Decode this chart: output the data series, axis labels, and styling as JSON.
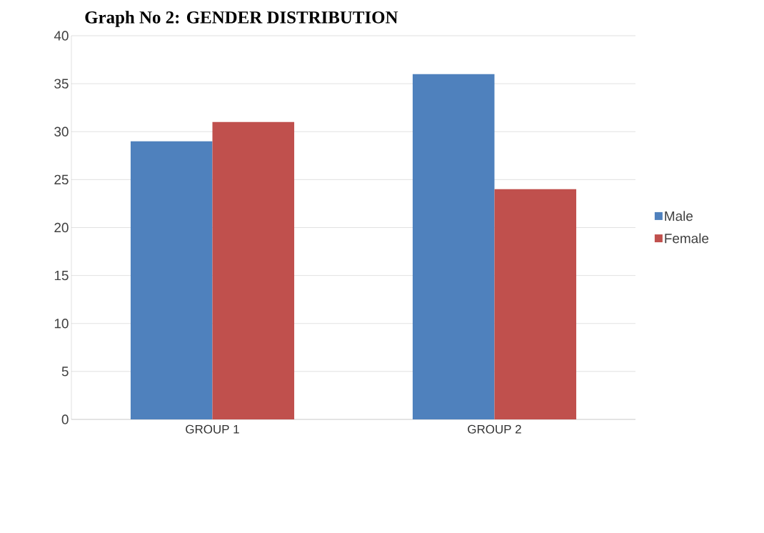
{
  "chart_data": {
    "type": "bar",
    "title": "Graph No 2: GENDER DISTRIBUTION",
    "categories": [
      "GROUP 1",
      "GROUP 2"
    ],
    "series": [
      {
        "name": "Male",
        "color": "#4f81bd",
        "values": [
          29,
          36
        ]
      },
      {
        "name": "Female",
        "color": "#c0504d",
        "values": [
          31,
          24
        ]
      }
    ],
    "ylim": [
      0,
      40
    ],
    "yticks": [
      0,
      5,
      10,
      15,
      20,
      25,
      30,
      35,
      40
    ],
    "grid": "y",
    "legend": "right"
  }
}
